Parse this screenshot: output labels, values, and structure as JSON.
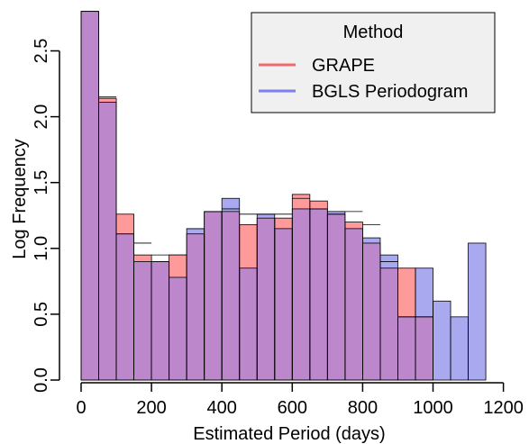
{
  "chart_data": {
    "type": "bar",
    "xlabel": "Estimated Period (days)",
    "ylabel": "Log Frequency",
    "xlim": [
      -20,
      1200
    ],
    "ylim": [
      0,
      2.8
    ],
    "xticks": [
      0,
      200,
      400,
      600,
      800,
      1000,
      1200
    ],
    "yticks": [
      0.0,
      0.5,
      1.0,
      1.5,
      2.0,
      2.5
    ],
    "xtick_labels": [
      "0",
      "200",
      "400",
      "600",
      "800",
      "1000",
      "1200"
    ],
    "ytick_labels": [
      "0.0",
      "0.5",
      "1.0",
      "1.5",
      "2.0",
      "2.5"
    ],
    "bin_width": 50,
    "bin_starts": [
      0,
      50,
      100,
      150,
      200,
      250,
      300,
      350,
      400,
      450,
      500,
      550,
      600,
      650,
      700,
      750,
      800,
      850,
      900,
      950,
      1000,
      1050,
      1100
    ],
    "colors": {
      "grape": "#FF9A9A",
      "bgls": "#A9A9F0",
      "overlap": "#BD87CC",
      "legend_grape_line": "#F06A6A",
      "legend_bgls_line": "#7E7EEE",
      "legend_bg": "#F0F0F0"
    },
    "series": [
      {
        "name": "GRAPE",
        "values": [
          2.8,
          2.14,
          1.26,
          0.95,
          0.9,
          0.95,
          1.11,
          1.28,
          1.28,
          1.18,
          1.23,
          1.23,
          1.41,
          1.36,
          1.26,
          1.2,
          1.04,
          0.85,
          0.85,
          0.48,
          0,
          0,
          0
        ]
      },
      {
        "name": "BGLS Periodogram",
        "values": [
          2.8,
          2.11,
          1.11,
          0.9,
          0.9,
          0.78,
          1.15,
          1.28,
          1.38,
          0.85,
          1.26,
          1.15,
          1.3,
          1.3,
          1.28,
          1.15,
          1.08,
          0.95,
          0.48,
          0.85,
          0.6,
          0.48,
          1.04
        ]
      }
    ],
    "black_outline_values": [
      2.8,
      2.15,
      1.11,
      1.04,
      0.95,
      0.95,
      1.15,
      1.28,
      1.3,
      1.26,
      1.26,
      1.26,
      1.38,
      1.3,
      1.26,
      1.28,
      1.18,
      0.9,
      0.48,
      0.48,
      0,
      0,
      0
    ],
    "legend": {
      "title": "Method",
      "position": "top-right",
      "entries": [
        "GRAPE",
        "BGLS Periodogram"
      ]
    }
  }
}
